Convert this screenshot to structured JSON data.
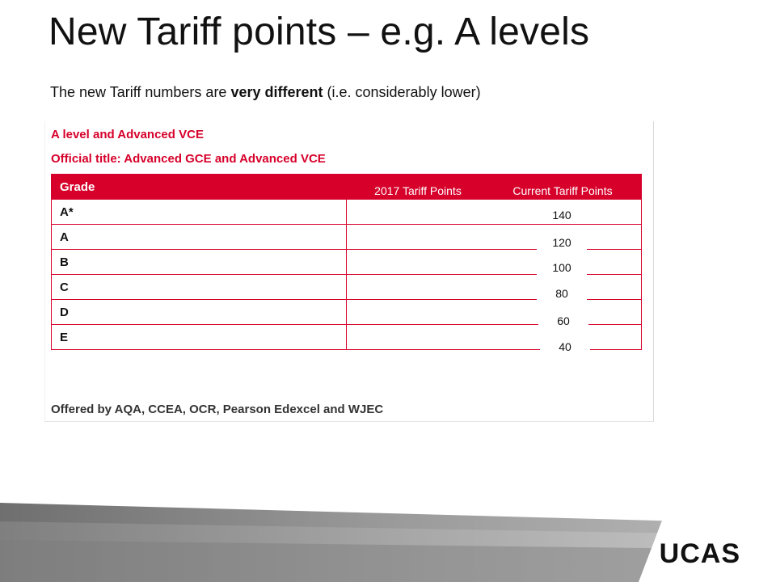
{
  "slide": {
    "title": "New Tariff points –  e.g. A levels",
    "subtitle_prefix": "The new Tariff numbers are ",
    "subtitle_bold": "very different",
    "subtitle_suffix": " (i.e. considerably lower)"
  },
  "panel": {
    "heading": "A level and Advanced VCE",
    "official_title": "Official title: Advanced GCE and Advanced VCE",
    "grade_header": "Grade",
    "grades": [
      "A*",
      "A",
      "B",
      "C",
      "D",
      "E"
    ],
    "footer": "Offered by AQA, CCEA, OCR, Pearson Edexcel and WJEC"
  },
  "overlay": {
    "header_2017": "2017 Tariff Points",
    "header_current": "Current Tariff Points",
    "current_values": [
      "140",
      "120",
      "100",
      "80",
      "60",
      "40"
    ]
  },
  "logo": {
    "text": "UCAS"
  },
  "colors": {
    "ucas_red": "#d6002a",
    "band_gray": "#8c8c8c"
  }
}
